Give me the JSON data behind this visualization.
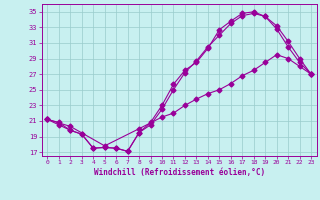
{
  "xlabel": "Windchill (Refroidissement éolien,°C)",
  "bg_color": "#c8f0f0",
  "line_color": "#990099",
  "grid_color": "#99cccc",
  "yticks": [
    17,
    19,
    21,
    23,
    25,
    27,
    29,
    31,
    33,
    35
  ],
  "xticks": [
    0,
    1,
    2,
    3,
    4,
    5,
    6,
    7,
    8,
    9,
    10,
    11,
    12,
    13,
    14,
    15,
    16,
    17,
    18,
    19,
    20,
    21,
    22,
    23
  ],
  "line1_x": [
    0,
    1,
    2,
    3,
    4,
    5,
    6,
    7,
    8,
    9,
    10,
    11,
    12,
    13,
    14,
    15,
    16,
    17,
    18,
    19,
    20,
    21,
    22,
    23
  ],
  "line1_y": [
    21.2,
    20.8,
    19.8,
    19.3,
    17.5,
    17.6,
    17.5,
    17.1,
    19.5,
    20.8,
    23.0,
    25.7,
    27.5,
    28.5,
    30.3,
    32.7,
    33.8,
    34.8,
    35.0,
    34.4,
    33.2,
    31.2,
    29.0,
    27.0
  ],
  "line2_x": [
    0,
    1,
    2,
    3,
    4,
    5,
    6,
    7,
    8,
    9,
    10,
    11,
    12,
    13,
    14,
    15,
    16,
    17,
    18,
    19,
    20,
    21,
    22,
    23
  ],
  "line2_y": [
    21.2,
    20.5,
    19.8,
    19.3,
    17.5,
    17.6,
    17.5,
    17.1,
    19.5,
    20.5,
    22.5,
    25.0,
    27.2,
    28.7,
    30.5,
    32.0,
    33.5,
    34.5,
    34.8,
    34.4,
    32.8,
    30.5,
    28.5,
    27.0
  ],
  "line3_x": [
    0,
    2,
    5,
    8,
    10,
    11,
    12,
    13,
    14,
    15,
    16,
    17,
    18,
    19,
    20,
    21,
    22,
    23
  ],
  "line3_y": [
    21.2,
    20.3,
    17.8,
    20.0,
    21.5,
    22.0,
    23.0,
    23.8,
    24.5,
    25.0,
    25.8,
    26.8,
    27.5,
    28.5,
    29.5,
    29.0,
    28.0,
    27.0
  ]
}
